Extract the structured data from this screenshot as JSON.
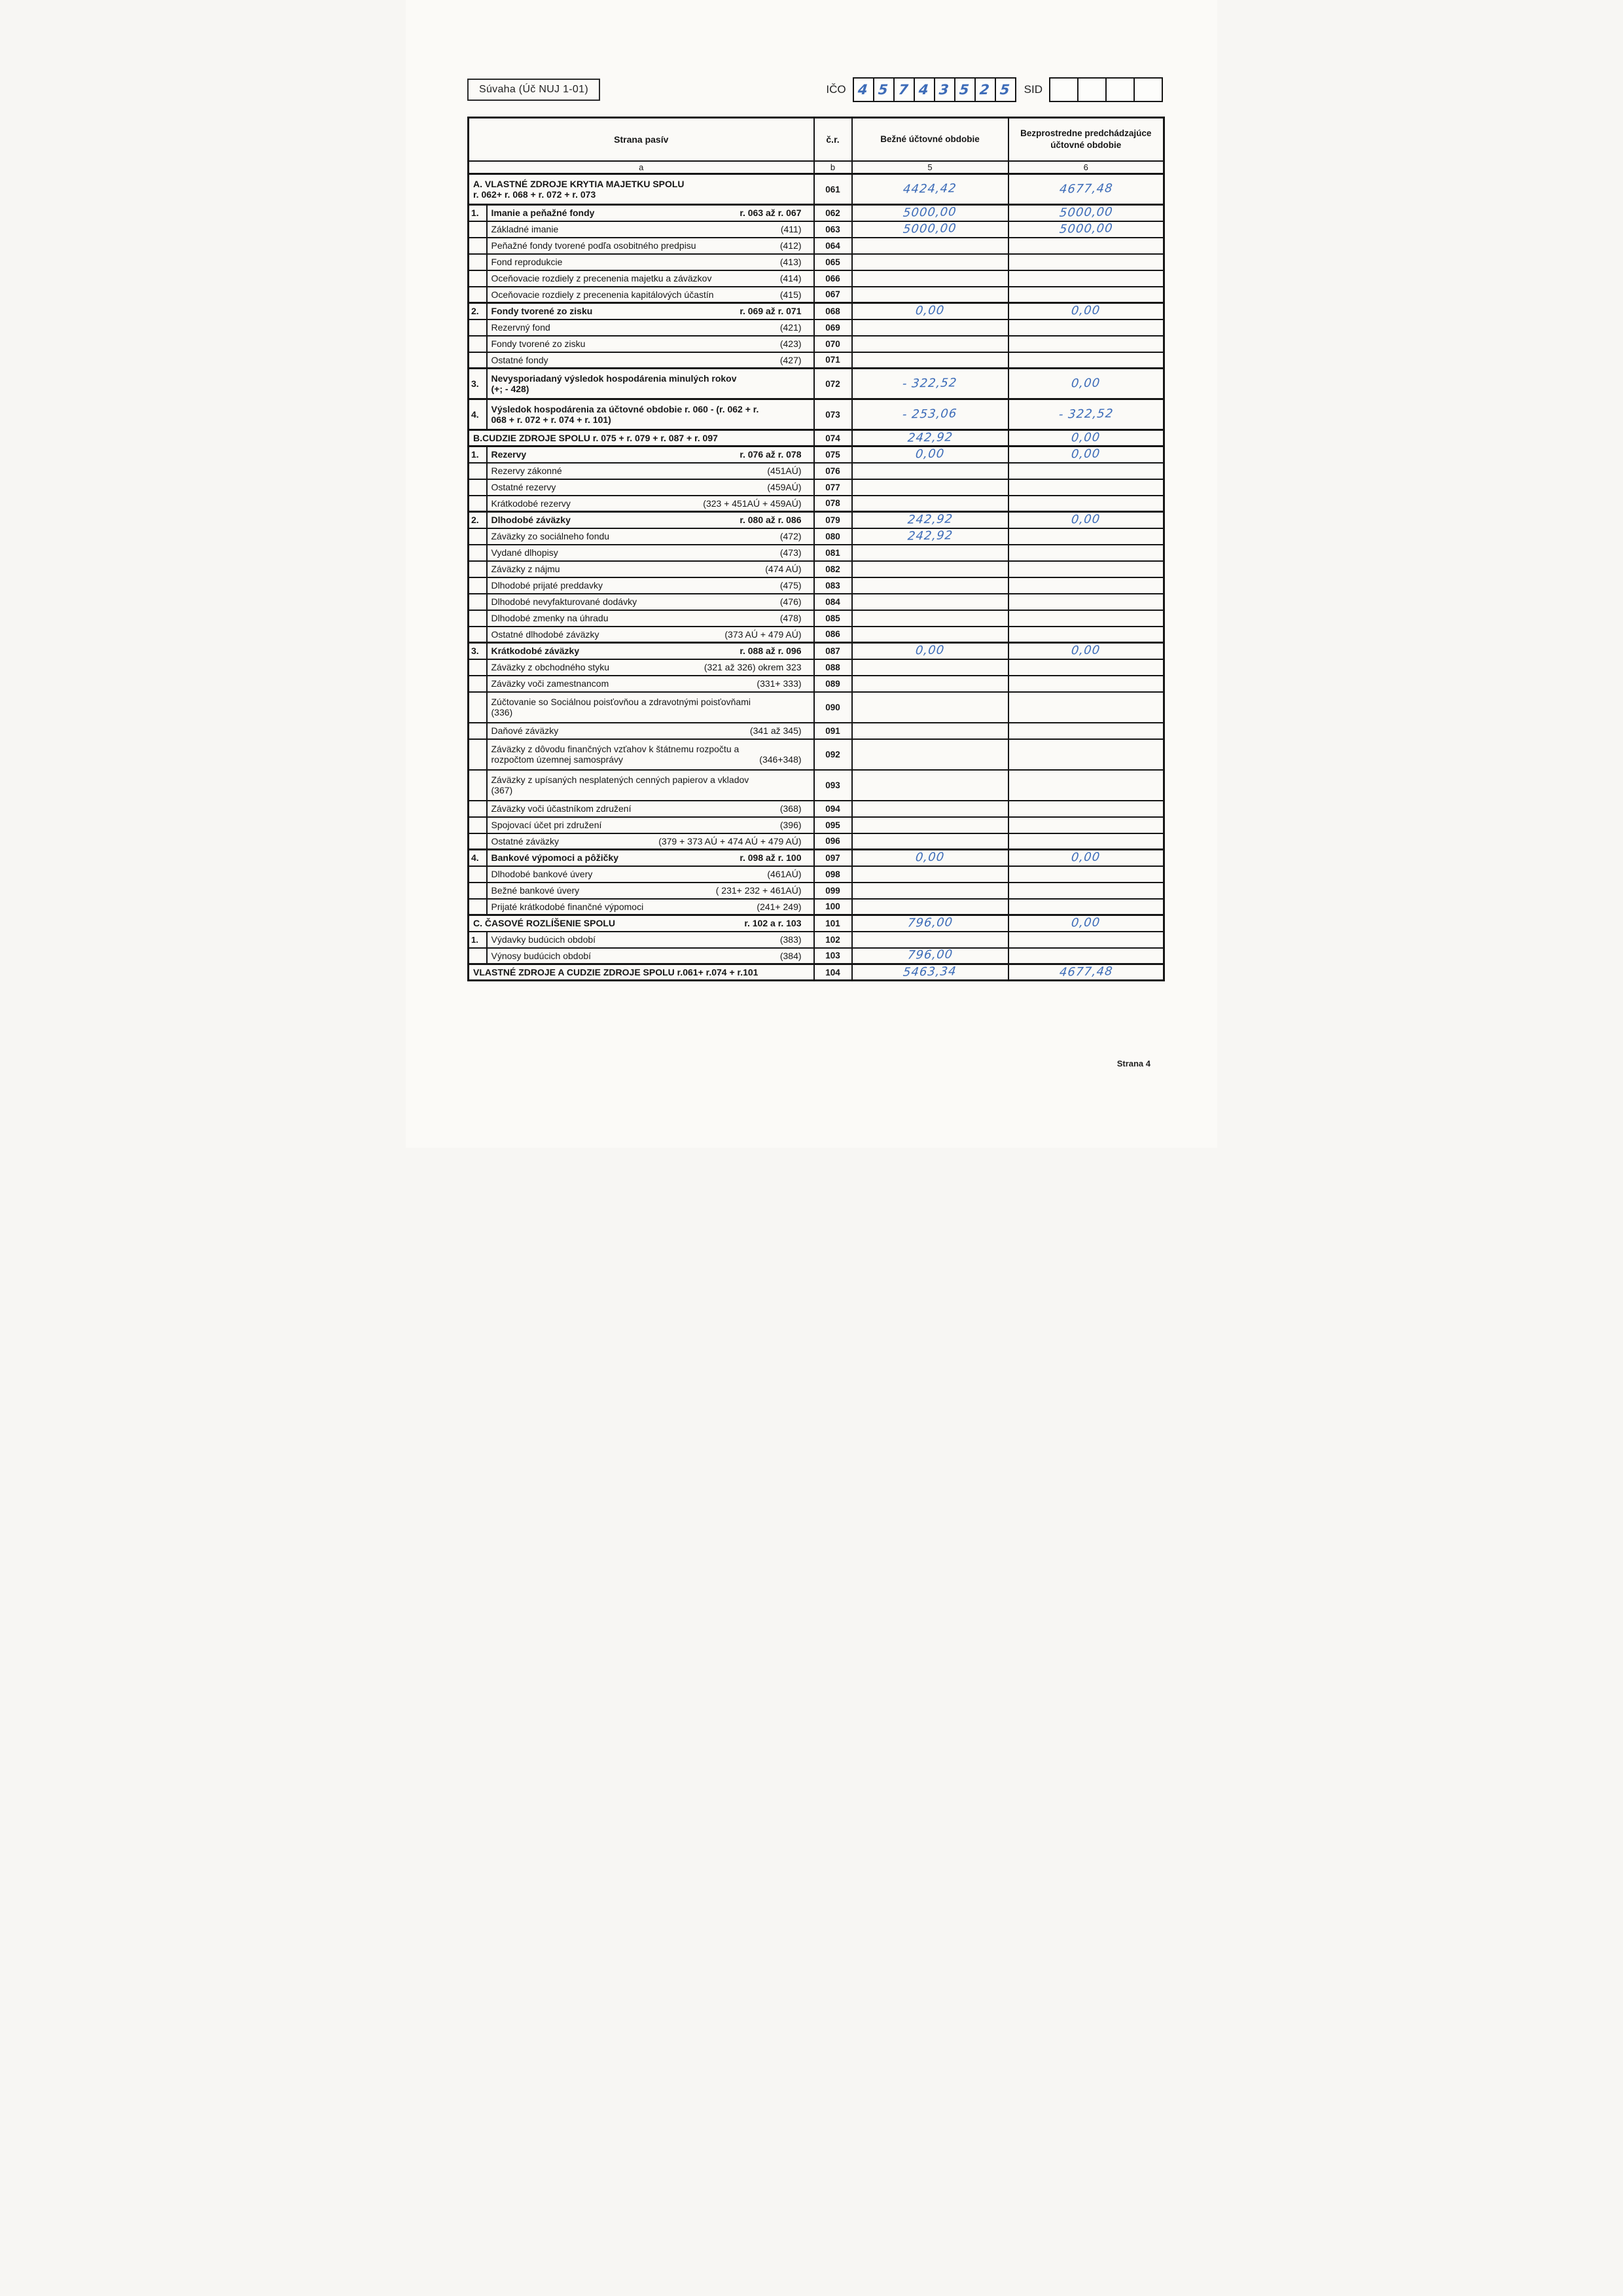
{
  "page": {
    "footer": "Strana 4"
  },
  "header": {
    "form_title": "Súvaha (Úč  NUJ 1-01)",
    "ico_label": "IČO",
    "ico_digits": [
      "4",
      "5",
      "7",
      "4",
      "3",
      "5",
      "2",
      "5"
    ],
    "sid_label": "SID",
    "sid_box_count": 4,
    "ink_color": "#3d6cb8"
  },
  "table": {
    "col_headers": {
      "strana": "Strana pasív",
      "cr": "č.r.",
      "col5": "Bežné účtovné obdobie",
      "col6": "Bezprostredne predchádzajúce účtovné obdobie"
    },
    "sub_headers": {
      "a": "a",
      "b": "b",
      "c5": "5",
      "c6": "6"
    },
    "rows": [
      {
        "full": 1,
        "bold": 1,
        "tall": 1,
        "label": "A. VLASTNÉ ZDROJE KRYTIA MAJETKU  SPOLU",
        "label2": "r. 062+ r. 068 + r. 072 + r. 073",
        "cr": "061",
        "v5": "4424,42",
        "v6": "4677,48"
      },
      {
        "num": "1.",
        "bold": 1,
        "label": "Imanie a peňažné fondy",
        "code": "r. 063 až r. 067",
        "cr": "062",
        "v5": "5000,00",
        "v6": "5000,00"
      },
      {
        "label": "Základné imanie",
        "code": "(411)",
        "cr": "063",
        "v5": "5000,00",
        "v6": "5000,00"
      },
      {
        "label": "Peňažné fondy tvorené podľa osobitného predpisu",
        "code": "(412)",
        "cr": "064"
      },
      {
        "label": "Fond reprodukcie",
        "code": "(413)",
        "cr": "065"
      },
      {
        "label": "Oceňovacie rozdiely z precenenia majetku a záväzkov",
        "code": "(414)",
        "cr": "066"
      },
      {
        "label": "Oceňovacie rozdiely z precenenia kapitálových účastín",
        "code": "(415)",
        "cr": "067"
      },
      {
        "num": "2.",
        "bold": 1,
        "label": "Fondy tvorené zo zisku",
        "code": "r. 069 až r. 071",
        "cr": "068",
        "v5": "0,00",
        "v6": "0,00"
      },
      {
        "label": "Rezervný fond",
        "code": "(421)",
        "cr": "069"
      },
      {
        "label": "Fondy tvorené zo zisku",
        "code": "(423)",
        "cr": "070"
      },
      {
        "label": "Ostatné fondy",
        "code": "(427)",
        "cr": "071"
      },
      {
        "num": "3.",
        "bold": 1,
        "tall": 1,
        "label": "Nevysporiadaný výsledok hospodárenia minulých rokov",
        "label2": "(+; - 428)",
        "cr": "072",
        "v5": "- 322,52",
        "v6": "0,00"
      },
      {
        "num": "4.",
        "bold": 1,
        "tall": 1,
        "label": "Výsledok hospodárenia  za účtovné obdobie r. 060 - (r. 062 + r.",
        "label2": "068 + r. 072 + r. 074 + r. 101)",
        "cr": "073",
        "v5": "- 253,06",
        "v6": "- 322,52"
      },
      {
        "full": 1,
        "bold": 1,
        "label": "B.CUDZIE ZDROJE SPOLU  r. 075 + r. 079 + r. 087 +  r. 097",
        "cr": "074",
        "v5": "242,92",
        "v6": "0,00"
      },
      {
        "num": "1.",
        "bold": 1,
        "label": "Rezervy",
        "code": "r. 076 až r. 078",
        "cr": "075",
        "v5": "0,00",
        "v6": "0,00"
      },
      {
        "label": "Rezervy zákonné",
        "code": "(451AÚ)",
        "cr": "076"
      },
      {
        "label": "Ostatné rezervy",
        "code": "(459AÚ)",
        "cr": "077"
      },
      {
        "label": "Krátkodobé rezervy",
        "code": "(323 + 451AÚ + 459AÚ)",
        "cr": "078"
      },
      {
        "num": "2.",
        "bold": 1,
        "label": "Dlhodobé záväzky",
        "code": "r. 080 až r. 086",
        "cr": "079",
        "v5": "242,92",
        "v6": "0,00"
      },
      {
        "label": "Záväzky zo sociálneho  fondu",
        "code": "(472)",
        "cr": "080",
        "v5": "242,92"
      },
      {
        "label": "Vydané dlhopisy",
        "code": "(473)",
        "cr": "081"
      },
      {
        "label": "Záväzky z nájmu",
        "code": "(474 AÚ)",
        "cr": "082"
      },
      {
        "label": "Dlhodobé prijaté preddavky",
        "code": "(475)",
        "cr": "083"
      },
      {
        "label": "Dlhodobé nevyfakturované dodávky",
        "code": "(476)",
        "cr": "084"
      },
      {
        "label": "Dlhodobé zmenky na úhradu",
        "code": "(478)",
        "cr": "085"
      },
      {
        "label": "Ostatné dlhodobé záväzky",
        "code": "(373 AÚ + 479 AÚ)",
        "cr": "086"
      },
      {
        "num": "3.",
        "bold": 1,
        "label": "Krátkodobé záväzky",
        "code": "r. 088 až r. 096",
        "cr": "087",
        "v5": "0,00",
        "v6": "0,00"
      },
      {
        "label": "Záväzky z obchodného styku",
        "code": "(321 až 326) okrem 323",
        "cr": "088"
      },
      {
        "label": "Záväzky voči zamestnancom",
        "code": "(331+ 333)",
        "cr": "089"
      },
      {
        "tall": 1,
        "label": "Zúčtovanie so Sociálnou poisťovňou a zdravotnými poisťovňami",
        "label2": "(336)",
        "cr": "090"
      },
      {
        "label": "Daňové záväzky",
        "code": "(341 až 345)",
        "cr": "091"
      },
      {
        "tall": 1,
        "label": "Záväzky z dôvodu finančných vzťahov k štátnemu rozpočtu a",
        "label2": "rozpočtom územnej samosprávy",
        "code2": "(346+348)",
        "cr": "092"
      },
      {
        "tall": 1,
        "label": "Záväzky z upísaných nesplatených cenných papierov a vkladov",
        "label2": "(367)",
        "cr": "093"
      },
      {
        "label": "Záväzky voči účastníkom združení",
        "code": "(368)",
        "cr": "094"
      },
      {
        "label": "Spojovací účet pri združení",
        "code": "(396)",
        "cr": "095"
      },
      {
        "label": "Ostatné záväzky",
        "code": "(379 + 373 AÚ + 474 AÚ + 479 AÚ)",
        "cr": "096"
      },
      {
        "num": "4.",
        "bold": 1,
        "label": "Bankové výpomoci a pôžičky",
        "code": "r. 098 až r. 100",
        "cr": "097",
        "v5": "0,00",
        "v6": "0,00"
      },
      {
        "label": "Dlhodobé bankové úvery",
        "code": "(461AÚ)",
        "cr": "098"
      },
      {
        "label": "Bežné bankové úvery",
        "code": "( 231+ 232 + 461AÚ)",
        "cr": "099"
      },
      {
        "label": "Prijaté krátkodobé finančné výpomoci",
        "code": "(241+ 249)",
        "cr": "100"
      },
      {
        "full": 1,
        "bold": 1,
        "label": "C. ČASOVÉ ROZLÍŠENIE  SPOLU",
        "code": "r. 102 a r. 103",
        "cr": "101",
        "v5": "796,00",
        "v6": "0,00"
      },
      {
        "num": "1.",
        "label": "Výdavky budúcich období",
        "code": "(383)",
        "cr": "102"
      },
      {
        "label": "Výnosy budúcich období",
        "code": "(384)",
        "cr": "103",
        "v5": "796,00"
      },
      {
        "full": 1,
        "bold": 1,
        "label": "VLASTNÉ ZDROJE A CUDZIE ZDROJE SPOLU  r.061+ r.074 + r.101",
        "cr": "104",
        "v5": "5463,34",
        "v6": "4677,48"
      }
    ]
  }
}
